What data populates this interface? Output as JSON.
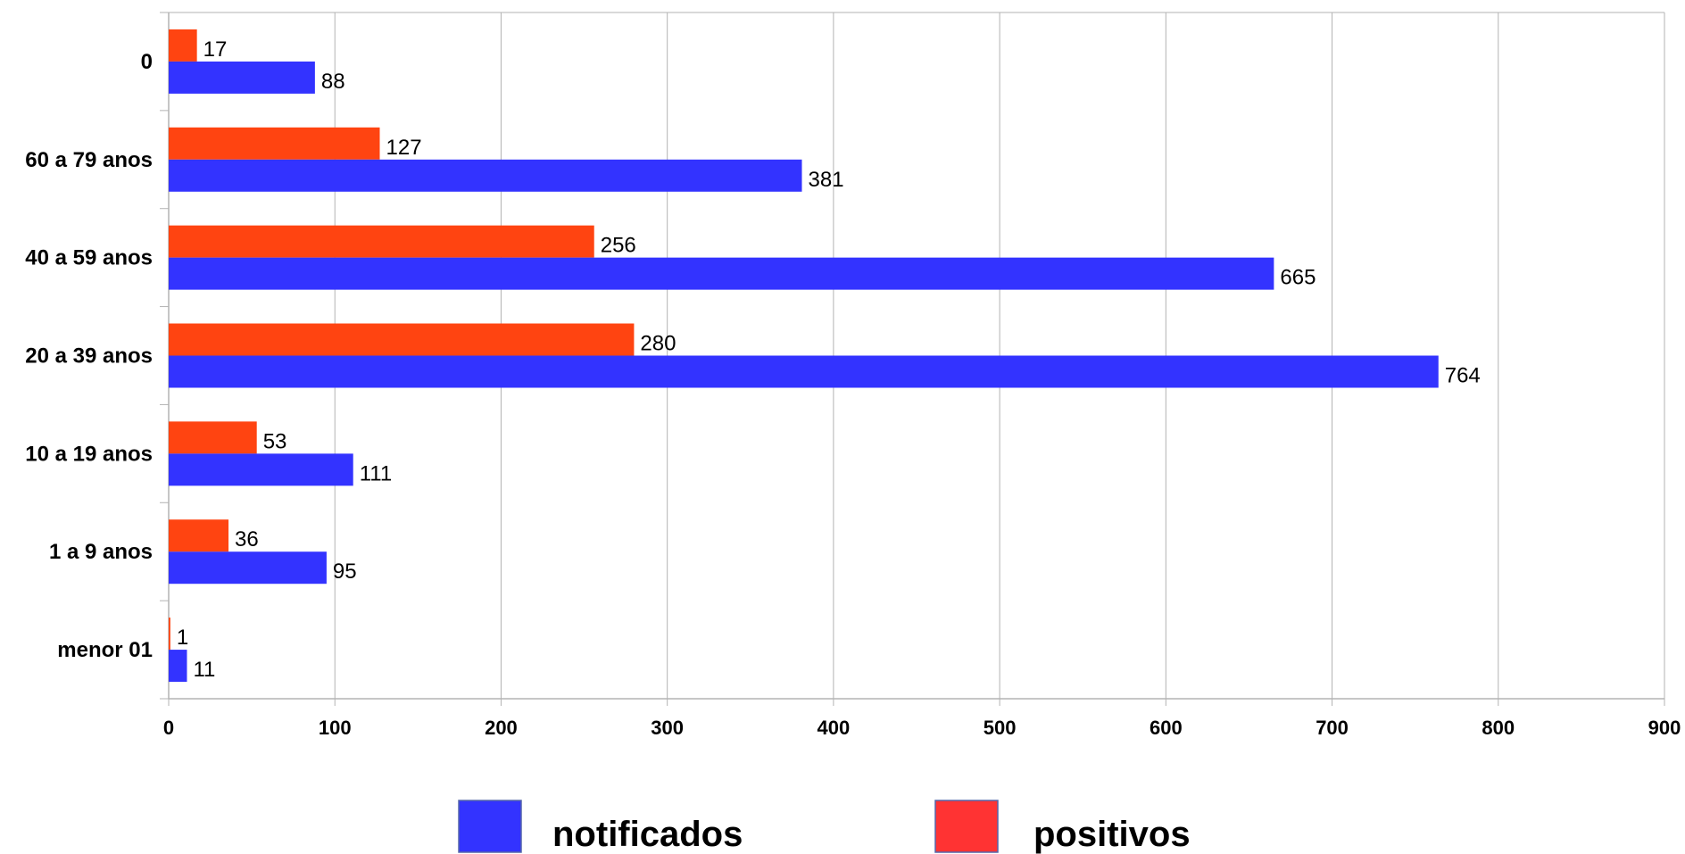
{
  "chart_data": {
    "type": "bar",
    "orientation": "horizontal",
    "categories": [
      "0",
      "60 a 79 anos",
      "40 a 59 anos",
      "20 a 39 anos",
      "10 a 19 anos",
      "1 a 9 anos",
      "menor 01"
    ],
    "series": [
      {
        "name": "positivos",
        "values": [
          17,
          127,
          256,
          280,
          53,
          36,
          1
        ],
        "color": "#ff4411"
      },
      {
        "name": "notificados",
        "values": [
          88,
          381,
          665,
          764,
          111,
          95,
          11
        ],
        "color": "#3333ff"
      }
    ],
    "xlim": [
      0,
      900
    ],
    "xticks": [
      0,
      100,
      200,
      300,
      400,
      500,
      600,
      700,
      800,
      900
    ],
    "grid": "vertical",
    "legend": {
      "placement": "bottom",
      "items": [
        {
          "label": "notificados",
          "color": "#3333ff"
        },
        {
          "label": "positivos",
          "color": "#ff3333"
        }
      ]
    },
    "title": "",
    "xlabel": "",
    "ylabel": ""
  }
}
